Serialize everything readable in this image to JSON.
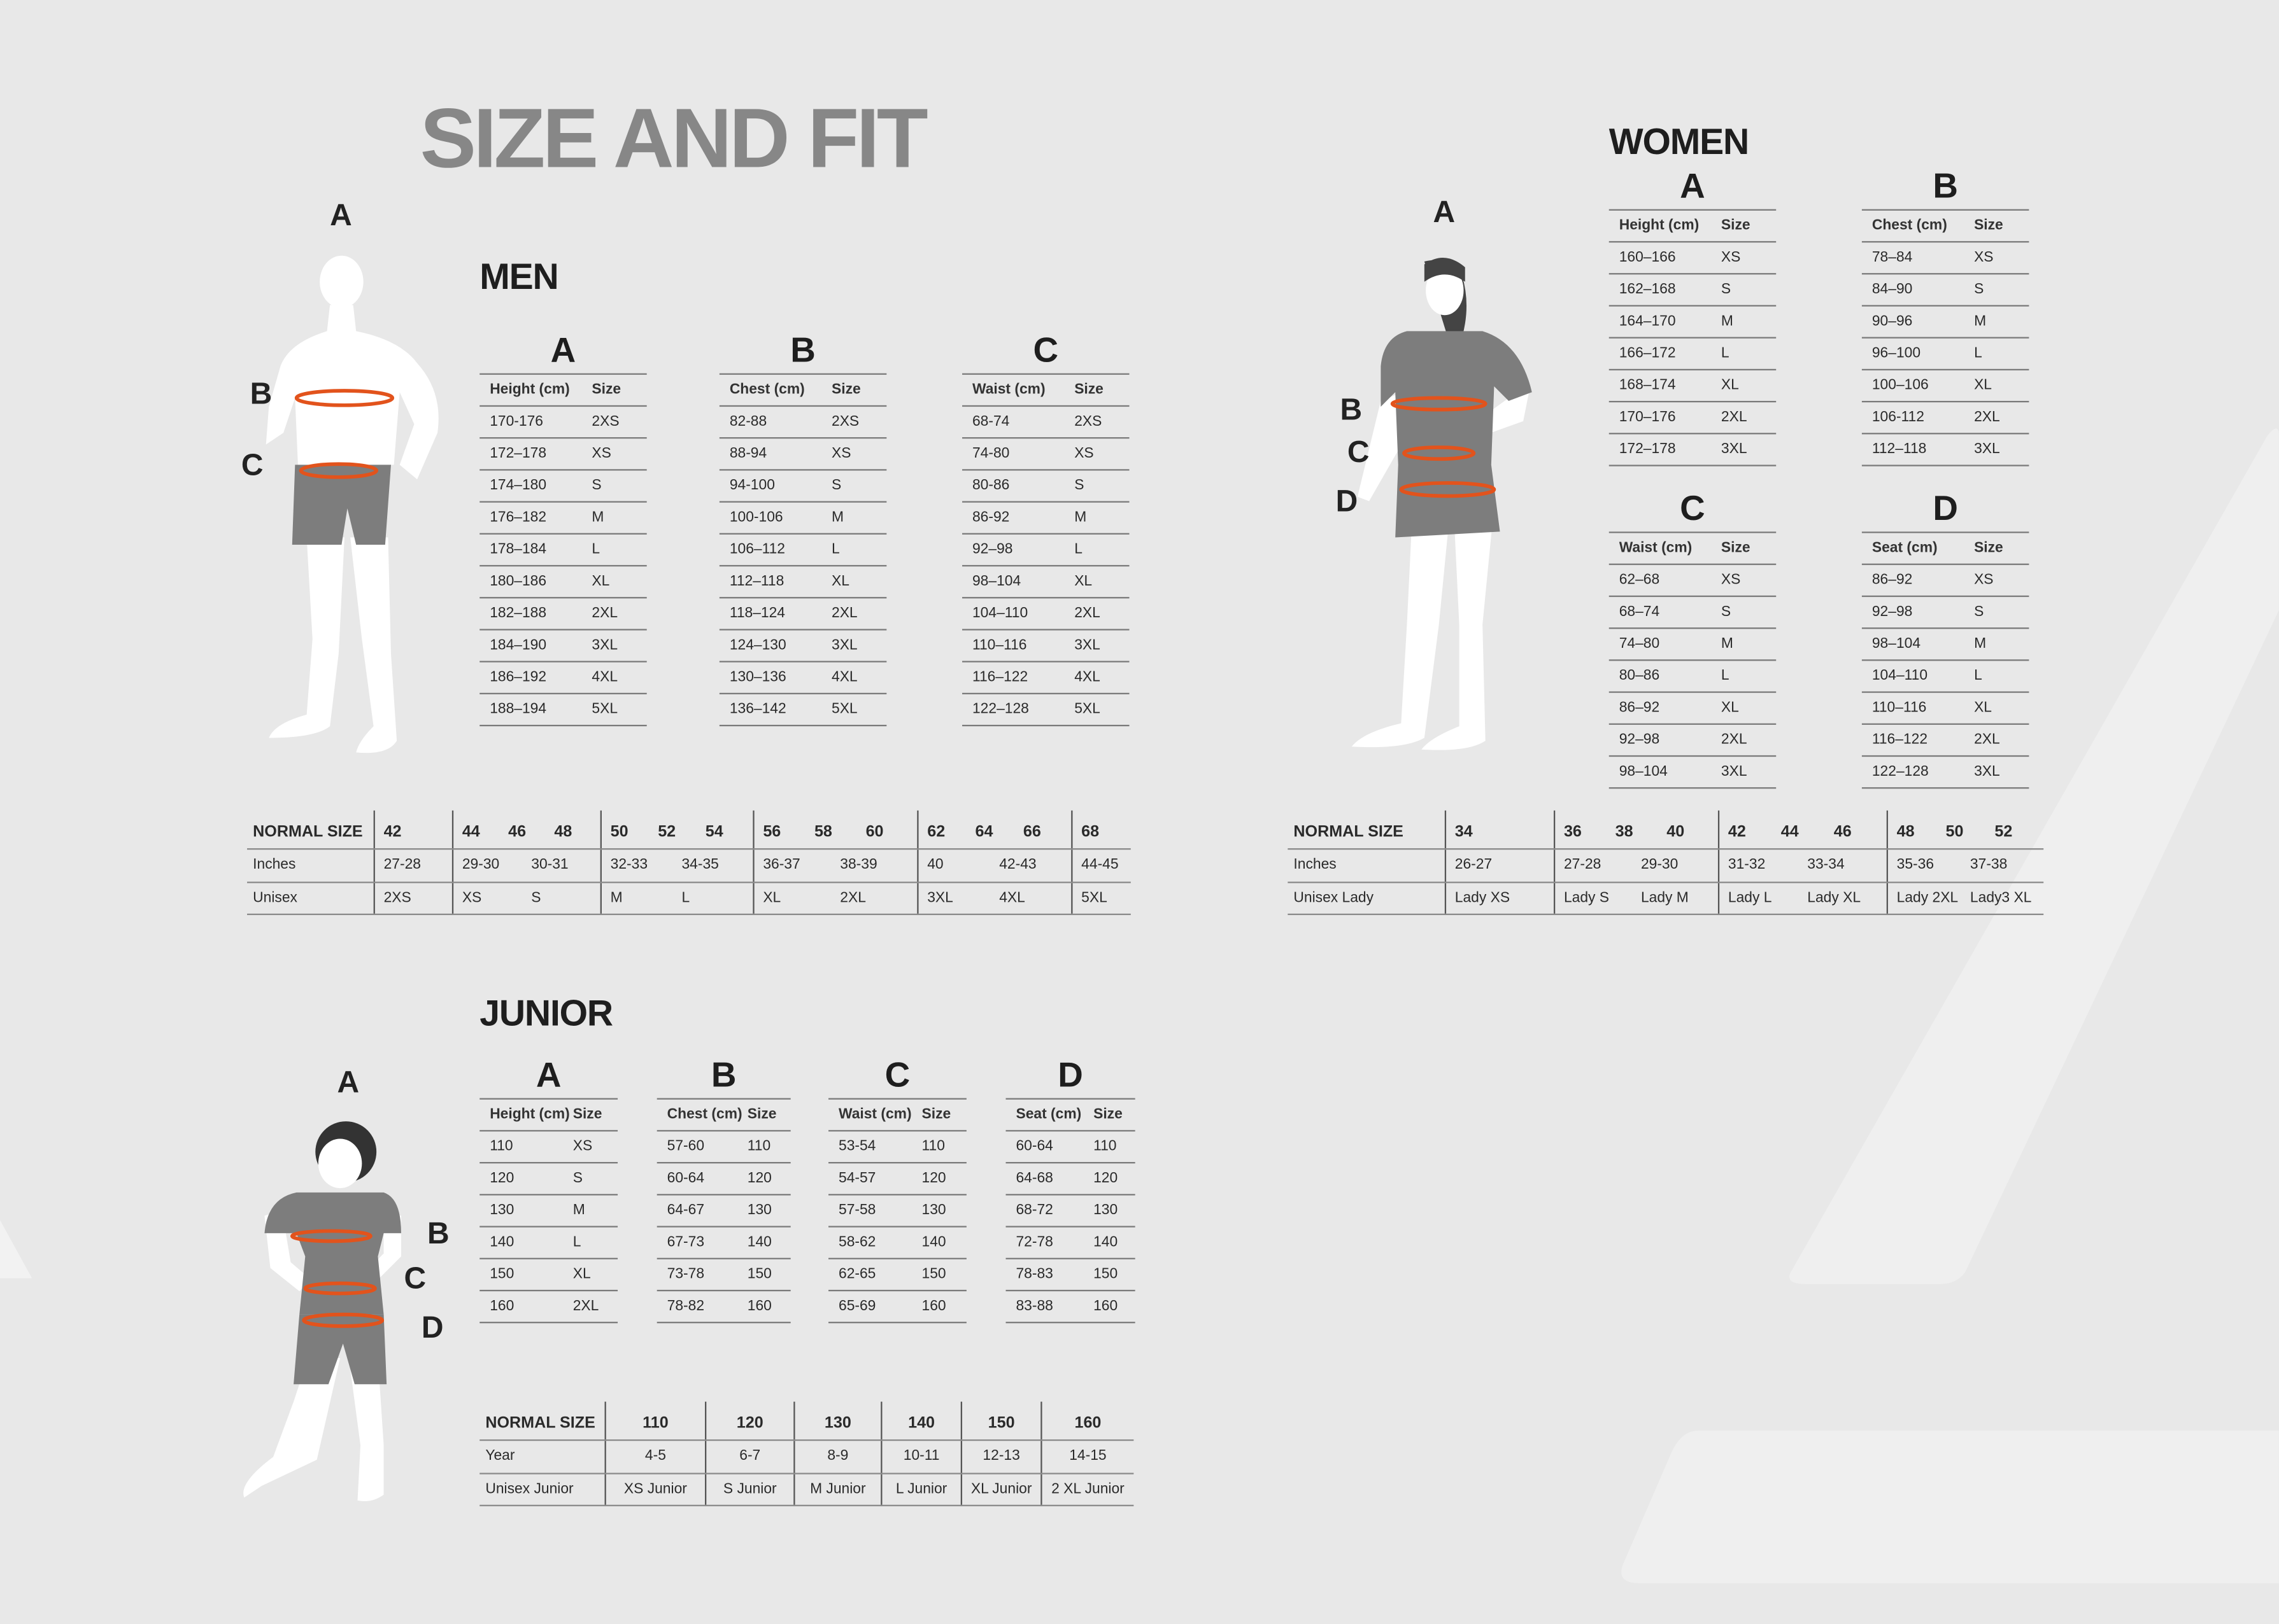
{
  "title": "SIZE AND FIT",
  "colors": {
    "background": "#e8e8e8",
    "title": "#878787",
    "measure_ring": "#e2531c",
    "garment": "#7d7d7d",
    "body": "#ffffff"
  },
  "men": {
    "heading": "MEN",
    "figure_labels": [
      "A",
      "B",
      "C"
    ],
    "tables": [
      {
        "letter": "A",
        "col1": "Height (cm)",
        "col2": "Size",
        "rows": [
          [
            "170-176",
            "2XS"
          ],
          [
            "172–178",
            "XS"
          ],
          [
            "174–180",
            "S"
          ],
          [
            "176–182",
            "M"
          ],
          [
            "178–184",
            "L"
          ],
          [
            "180–186",
            "XL"
          ],
          [
            "182–188",
            "2XL"
          ],
          [
            "184–190",
            "3XL"
          ],
          [
            "186–192",
            "4XL"
          ],
          [
            "188–194",
            "5XL"
          ]
        ]
      },
      {
        "letter": "B",
        "col1": "Chest (cm)",
        "col2": "Size",
        "rows": [
          [
            "82-88",
            "2XS"
          ],
          [
            "88-94",
            "XS"
          ],
          [
            "94-100",
            "S"
          ],
          [
            "100-106",
            "M"
          ],
          [
            "106–112",
            "L"
          ],
          [
            "112–118",
            "XL"
          ],
          [
            "118–124",
            "2XL"
          ],
          [
            "124–130",
            "3XL"
          ],
          [
            "130–136",
            "4XL"
          ],
          [
            "136–142",
            "5XL"
          ]
        ]
      },
      {
        "letter": "C",
        "col1": "Waist (cm)",
        "col2": "Size",
        "rows": [
          [
            "68-74",
            "2XS"
          ],
          [
            "74-80",
            "XS"
          ],
          [
            "80-86",
            "S"
          ],
          [
            "86-92",
            "M"
          ],
          [
            "92–98",
            "L"
          ],
          [
            "98–104",
            "XL"
          ],
          [
            "104–110",
            "2XL"
          ],
          [
            "110–116",
            "3XL"
          ],
          [
            "116–122",
            "4XL"
          ],
          [
            "122–128",
            "5XL"
          ]
        ]
      }
    ],
    "normal": {
      "labels": [
        "NORMAL SIZE",
        "Inches",
        "Unisex"
      ],
      "groups": [
        {
          "sizes": [
            "42"
          ],
          "inches": [
            "27-28"
          ],
          "unisex": [
            "2XS"
          ]
        },
        {
          "sizes": [
            "44",
            "46",
            "48"
          ],
          "inches": [
            "29-30",
            "30-31"
          ],
          "unisex": [
            "XS",
            "S"
          ]
        },
        {
          "sizes": [
            "50",
            "52",
            "54"
          ],
          "inches": [
            "32-33",
            "34-35"
          ],
          "unisex": [
            "M",
            "L"
          ]
        },
        {
          "sizes": [
            "56",
            "58",
            "60"
          ],
          "inches": [
            "36-37",
            "38-39"
          ],
          "unisex": [
            "XL",
            "2XL"
          ]
        },
        {
          "sizes": [
            "62",
            "64",
            "66"
          ],
          "inches": [
            "40",
            "42-43"
          ],
          "unisex": [
            "3XL",
            "4XL"
          ]
        },
        {
          "sizes": [
            "68"
          ],
          "inches": [
            "44-45"
          ],
          "unisex": [
            "5XL"
          ]
        }
      ]
    }
  },
  "women": {
    "heading": "WOMEN",
    "figure_labels": [
      "A",
      "B",
      "C",
      "D"
    ],
    "tables": [
      {
        "letter": "A",
        "col1": "Height (cm)",
        "col2": "Size",
        "rows": [
          [
            "160–166",
            "XS"
          ],
          [
            "162–168",
            "S"
          ],
          [
            "164–170",
            "M"
          ],
          [
            "166–172",
            "L"
          ],
          [
            "168–174",
            "XL"
          ],
          [
            "170–176",
            "2XL"
          ],
          [
            "172–178",
            "3XL"
          ]
        ]
      },
      {
        "letter": "B",
        "col1": "Chest (cm)",
        "col2": "Size",
        "rows": [
          [
            "78–84",
            "XS"
          ],
          [
            "84–90",
            "S"
          ],
          [
            "90–96",
            "M"
          ],
          [
            "96–100",
            "L"
          ],
          [
            "100–106",
            "XL"
          ],
          [
            "106-112",
            "2XL"
          ],
          [
            "112–118",
            "3XL"
          ]
        ]
      },
      {
        "letter": "C",
        "col1": "Waist (cm)",
        "col2": "Size",
        "rows": [
          [
            "62–68",
            "XS"
          ],
          [
            "68–74",
            "S"
          ],
          [
            "74–80",
            "M"
          ],
          [
            "80–86",
            "L"
          ],
          [
            "86–92",
            "XL"
          ],
          [
            "92–98",
            "2XL"
          ],
          [
            "98–104",
            "3XL"
          ]
        ]
      },
      {
        "letter": "D",
        "col1": "Seat (cm)",
        "col2": "Size",
        "rows": [
          [
            "86–92",
            "XS"
          ],
          [
            "92–98",
            "S"
          ],
          [
            "98–104",
            "M"
          ],
          [
            "104–110",
            "L"
          ],
          [
            "110–116",
            "XL"
          ],
          [
            "116–122",
            "2XL"
          ],
          [
            "122–128",
            "3XL"
          ]
        ]
      }
    ],
    "normal": {
      "labels": [
        "NORMAL SIZE",
        "Inches",
        "Unisex Lady"
      ],
      "groups": [
        {
          "sizes": [
            "34"
          ],
          "inches": [
            "26-27"
          ],
          "unisex": [
            "Lady XS"
          ]
        },
        {
          "sizes": [
            "36",
            "38",
            "40"
          ],
          "inches": [
            "27-28",
            "29-30"
          ],
          "unisex": [
            "Lady S",
            "Lady M"
          ]
        },
        {
          "sizes": [
            "42",
            "44",
            "46"
          ],
          "inches": [
            "31-32",
            "33-34"
          ],
          "unisex": [
            "Lady L",
            "Lady XL"
          ]
        },
        {
          "sizes": [
            "48",
            "50",
            "52"
          ],
          "inches": [
            "35-36",
            "37-38"
          ],
          "unisex": [
            "Lady 2XL",
            "Lady3 XL"
          ]
        }
      ]
    }
  },
  "junior": {
    "heading": "JUNIOR",
    "figure_labels": [
      "A",
      "B",
      "C",
      "D"
    ],
    "tables": [
      {
        "letter": "A",
        "col1": "Height (cm)",
        "col2": "Size",
        "rows": [
          [
            "110",
            "XS"
          ],
          [
            "120",
            "S"
          ],
          [
            "130",
            "M"
          ],
          [
            "140",
            "L"
          ],
          [
            "150",
            "XL"
          ],
          [
            "160",
            "2XL"
          ]
        ]
      },
      {
        "letter": "B",
        "col1": "Chest (cm)",
        "col2": "Size",
        "rows": [
          [
            "57-60",
            "110"
          ],
          [
            "60-64",
            "120"
          ],
          [
            "64-67",
            "130"
          ],
          [
            "67-73",
            "140"
          ],
          [
            "73-78",
            "150"
          ],
          [
            "78-82",
            "160"
          ]
        ]
      },
      {
        "letter": "C",
        "col1": "Waist (cm)",
        "col2": "Size",
        "rows": [
          [
            "53-54",
            "110"
          ],
          [
            "54-57",
            "120"
          ],
          [
            "57-58",
            "130"
          ],
          [
            "58-62",
            "140"
          ],
          [
            "62-65",
            "150"
          ],
          [
            "65-69",
            "160"
          ]
        ]
      },
      {
        "letter": "D",
        "col1": "Seat (cm)",
        "col2": "Size",
        "rows": [
          [
            "60-64",
            "110"
          ],
          [
            "64-68",
            "120"
          ],
          [
            "68-72",
            "130"
          ],
          [
            "72-78",
            "140"
          ],
          [
            "78-83",
            "150"
          ],
          [
            "83-88",
            "160"
          ]
        ]
      }
    ],
    "normal": {
      "labels": [
        "NORMAL SIZE",
        "Year",
        "Unisex Junior"
      ],
      "groups": [
        {
          "sizes": [
            "110"
          ],
          "inches": [
            "4-5"
          ],
          "unisex": [
            "XS Junior"
          ]
        },
        {
          "sizes": [
            "120"
          ],
          "inches": [
            "6-7"
          ],
          "unisex": [
            "S Junior"
          ]
        },
        {
          "sizes": [
            "130"
          ],
          "inches": [
            "8-9"
          ],
          "unisex": [
            "M Junior"
          ]
        },
        {
          "sizes": [
            "140"
          ],
          "inches": [
            "10-11"
          ],
          "unisex": [
            "L Junior"
          ]
        },
        {
          "sizes": [
            "150"
          ],
          "inches": [
            "12-13"
          ],
          "unisex": [
            "XL Junior"
          ]
        },
        {
          "sizes": [
            "160"
          ],
          "inches": [
            "14-15"
          ],
          "unisex": [
            "2 XL Junior"
          ]
        }
      ]
    }
  }
}
